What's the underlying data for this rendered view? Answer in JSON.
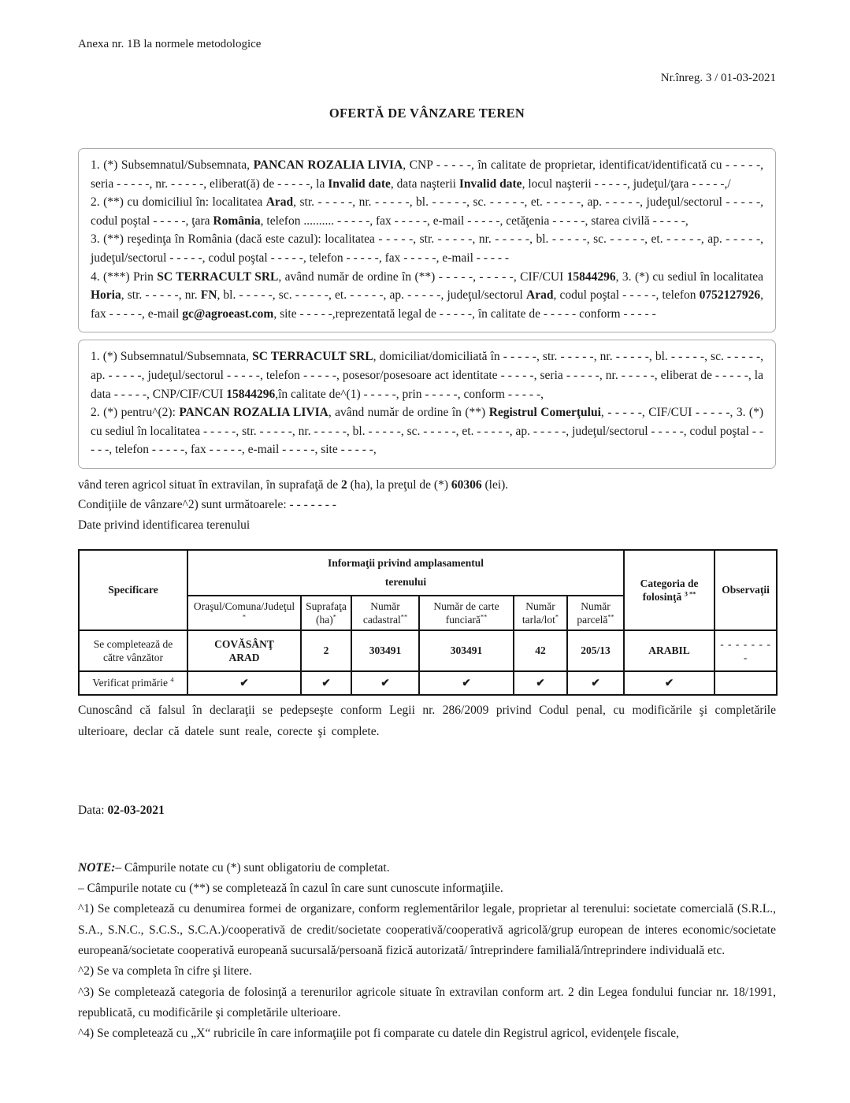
{
  "page": {
    "annex_label": "Anexa nr. 1B la normele metodologice",
    "reg_number": "Nr.înreg. 3 / 01-03-2021",
    "title": "OFERTĂ DE VÂNZARE TEREN"
  },
  "box1": {
    "p1": [
      {
        "t": "1. (*) Subsemnatul/Subsemnata, "
      },
      {
        "t": "PANCAN ROZALIA LIVIA",
        "b": true
      },
      {
        "t": ", CNP - - - - -, în calitate de proprietar, identificat/identificată cu - - - - -, seria - - - - -, nr. - - - - -, eliberat(ă) de - - - - -, la "
      },
      {
        "t": "Invalid date",
        "b": true
      },
      {
        "t": ", data naşterii "
      },
      {
        "t": "Invalid date",
        "b": true
      },
      {
        "t": ", locul naşterii - - - - -, judeţul/ţara - - - - -,/"
      }
    ],
    "p2": [
      {
        "t": "2. (**) cu domiciliul în: localitatea "
      },
      {
        "t": "Arad",
        "b": true
      },
      {
        "t": ", str. - - - - -, nr. - - - - -, bl. - - - - -, sc. - - - - -, et. - - - - -, ap. - - - - -, judeţul/sectorul - - - - -, codul poştal - - - - -, ţara "
      },
      {
        "t": "România",
        "b": true
      },
      {
        "t": ", telefon .......... - - - - -, fax - - - - -, e-mail - - - - -, cetăţenia - - - - -, starea civilă - - - - -,"
      }
    ],
    "p3": [
      {
        "t": "3. (**) reşedinţa în România (dacă este cazul): localitatea - - - - -, str. - - - - -, nr. - - - - -, bl. - - - - -, sc. - - - - -, et. - - - - -, ap. - - - - -, judeţul/sectorul - - - - -, codul poştal - - - - -, telefon - - - - -, fax - - - - -, e-mail - - - - -"
      }
    ],
    "p4": [
      {
        "t": "4. (***) Prin "
      },
      {
        "t": "SC TERRACULT SRL",
        "b": true
      },
      {
        "t": ", având număr de ordine în (**) - - - - -, - - - - -, CIF/CUI "
      },
      {
        "t": "15844296",
        "b": true
      },
      {
        "t": ", 3. (*) cu sediul în localitatea "
      },
      {
        "t": "Horia",
        "b": true
      },
      {
        "t": ", str. - - - - -, nr. "
      },
      {
        "t": "FN",
        "b": true
      },
      {
        "t": ", bl. - - - - -, sc. - - - - -, et. - - - - -, ap. - - - - -, judeţul/sectorul "
      },
      {
        "t": "Arad",
        "b": true
      },
      {
        "t": ", codul poştal - - - - -, telefon "
      },
      {
        "t": "0752127926",
        "b": true
      },
      {
        "t": ", fax - - - - -, e-mail "
      },
      {
        "t": "gc@agroeast.com",
        "b": true
      },
      {
        "t": ", site - - - - -,reprezentată legal de - - - - -, în calitate de - - - - - conform - - - - -"
      }
    ]
  },
  "box2": {
    "p1": [
      {
        "t": "1. (*) Subsemnatul/Subsemnata, "
      },
      {
        "t": "SC TERRACULT SRL",
        "b": true
      },
      {
        "t": ", domiciliat/domiciliată în - - - - -, str. - - - - -, nr. - - - - -, bl. - - - - -, sc. - - - - -, ap. - - - - -, judeţul/sectorul - - - - -, telefon - - - - -, posesor/posesoare act identitate - - - - -, seria - - - - -, nr. - - - - -, eliberat de - - - - -, la data - - - - -, CNP/CIF/CUI "
      },
      {
        "t": "15844296",
        "b": true
      },
      {
        "t": ",în calitate de^(1) - - - - -, prin - - - - -, conform - - - - -,"
      }
    ],
    "p2": [
      {
        "t": "2. (*) pentru^(2): "
      },
      {
        "t": "PANCAN ROZALIA LIVIA",
        "b": true
      },
      {
        "t": ", având număr de ordine în (**) "
      },
      {
        "t": "Registrul Comerţului",
        "b": true
      },
      {
        "t": ", - - - - -, CIF/CUI - - - - -, 3. (*) cu sediul în localitatea - - - - -, str. - - - - -, nr. - - - - -, bl. - - - - -, sc. - - - - -, et. - - - - -, ap. - - - - -, judeţul/sectorul - - - - -, codul poştal - - - - -, telefon - - - - -, fax - - - - -, e-mail - - - - -, site - - - - -,"
      }
    ]
  },
  "offer": {
    "sale_line": [
      {
        "t": "vând teren agricol situat în extravilan, în suprafaţă de "
      },
      {
        "t": "2",
        "b": true
      },
      {
        "t": " (ha), la preţul de (*) "
      },
      {
        "t": "60306",
        "b": true
      },
      {
        "t": " (lei)."
      }
    ],
    "conditions_line": "Condiţiile de vânzare^2) sunt următoarele: - - - - - - -",
    "land_id_line": "Date privind identificarea terenului"
  },
  "table": {
    "corner_header": "Specificare",
    "group_header": {
      "line1": "Informaţii privind amplasamentul",
      "line2": "terenului"
    },
    "category_header": [
      {
        "t": "Categoria de folosinţă "
      },
      {
        "t": "3 **",
        "sup": true
      }
    ],
    "observations_header": "Observaţii",
    "sub_headers": [
      [
        {
          "t": "Oraşul/Comuna/Judeţul"
        },
        {
          "br": true
        },
        {
          "t": "*",
          "sup": true
        }
      ],
      [
        {
          "t": "Suprafaţa"
        },
        {
          "br": true
        },
        {
          "t": "(ha)"
        },
        {
          "t": "*",
          "sup": true
        }
      ],
      [
        {
          "t": "Număr"
        },
        {
          "br": true
        },
        {
          "t": "cadastral"
        },
        {
          "t": "**",
          "sup": true
        }
      ],
      [
        {
          "t": "Număr de carte"
        },
        {
          "br": true
        },
        {
          "t": "funciară"
        },
        {
          "t": "**",
          "sup": true
        }
      ],
      [
        {
          "t": "Număr"
        },
        {
          "br": true
        },
        {
          "t": "tarla/lot"
        },
        {
          "t": "*",
          "sup": true
        }
      ],
      [
        {
          "t": "Număr"
        },
        {
          "br": true
        },
        {
          "t": "parcelă"
        },
        {
          "t": "**",
          "sup": true
        }
      ]
    ],
    "seller_row": {
      "label": "Se completează de către vânzător",
      "values": [
        [
          {
            "t": "COVĂSÂNŢ",
            "b": true
          },
          {
            "br": true
          },
          {
            "t": "ARAD",
            "b": true
          }
        ],
        [
          {
            "t": "2",
            "b": true
          }
        ],
        [
          {
            "t": "303491",
            "b": true
          }
        ],
        [
          {
            "t": "303491",
            "b": true
          }
        ],
        [
          {
            "t": "42",
            "b": true
          }
        ],
        [
          {
            "t": "205/13",
            "b": true
          }
        ],
        [
          {
            "t": "ARABIL",
            "b": true
          }
        ],
        [
          {
            "t": "- - - - - - - -"
          }
        ]
      ]
    },
    "verify_row": {
      "label": [
        {
          "t": "Verificat primărie "
        },
        {
          "t": "4",
          "sup": true
        }
      ],
      "checks": [
        "✔",
        "✔",
        "✔",
        "✔",
        "✔",
        "✔",
        "✔",
        ""
      ]
    }
  },
  "declaration": "Cunoscând că falsul în declaraţii se pedepseşte conform Legii nr. 286/2009 privind Codul penal, cu modificările şi completările ulterioare, declar că datele sunt reale, corecte şi complete.",
  "date_line": [
    {
      "t": "Data: "
    },
    {
      "t": "02-03-2021",
      "b": true
    }
  ],
  "notes": {
    "note1": [
      {
        "t": "NOTE:",
        "b": true,
        "i": true
      },
      {
        "t": "– Câmpurile notate cu (*) sunt obligatoriu de completat."
      }
    ],
    "note2": "– Câmpurile notate cu (**) se completează în cazul în care sunt cunoscute informaţiile.",
    "fn1": "^1) Se completează cu denumirea formei de organizare, conform reglementărilor legale, proprietar al terenului: societate comercială (S.R.L., S.A., S.N.C., S.C.S., S.C.A.)/cooperativă de credit/societate cooperativă/cooperativă agricolă/grup european de interes economic/societate europeană/societate cooperativă europeană sucursală/persoană fizică autorizată/ întreprindere familială/întreprindere individuală etc.",
    "fn2": "^2) Se va completa în cifre şi litere.",
    "fn3": "^3) Se completează categoria de folosinţă a terenurilor agricole situate în extravilan conform art. 2 din Legea fondului funciar nr. 18/1991, republicată, cu modificările şi completările ulterioare.",
    "fn4": "^4) Se completează cu „X“ rubricile în care informaţiile pot fi comparate cu datele din Registrul agricol, evidenţele fiscale,"
  }
}
